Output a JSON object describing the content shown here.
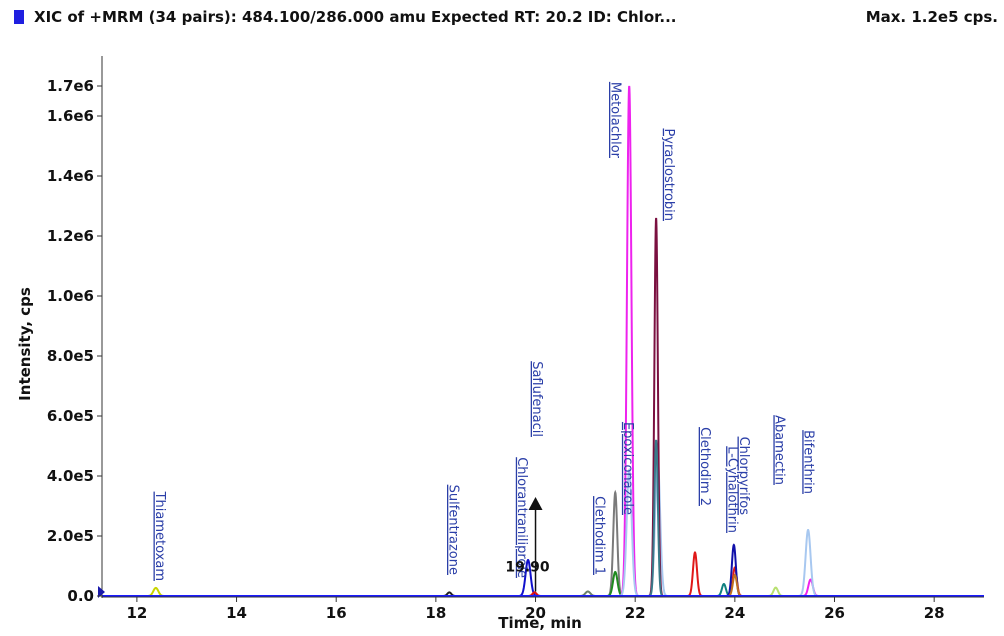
{
  "header": {
    "title": "XIC of +MRM (34 pairs): 484.100/286.000 amu Expected RT: 20.2 ID: Chlor...",
    "max_text": "Max. 1.2e5 cps.",
    "swatch_color": "#1f1fe0"
  },
  "chart_data": {
    "type": "line",
    "title": "XIC of +MRM (34 pairs): 484.100/286.000 amu Expected RT: 20.2 ID: Chlor...",
    "xlabel": "Time, min",
    "ylabel": "Intensity, cps",
    "xlim": [
      11.3,
      29.0
    ],
    "ylim": [
      0,
      1780000
    ],
    "x_ticks": [
      12,
      14,
      16,
      18,
      20,
      22,
      24,
      26,
      28
    ],
    "x_tick_labels": [
      "12",
      "14",
      "16",
      "18",
      "20",
      "22",
      "24",
      "26",
      "28"
    ],
    "y_ticks": [
      0,
      200000,
      400000,
      600000,
      800000,
      1000000,
      1200000,
      1400000,
      1600000,
      1700000
    ],
    "y_tick_labels": [
      "0.0",
      "2.0e5",
      "4.0e5",
      "6.0e5",
      "8.0e5",
      "1.0e6",
      "1.2e6",
      "1.4e6",
      "1.6e6",
      "1.7e6"
    ],
    "grid": false,
    "baseline_color": "#1a1aff",
    "series": [
      {
        "color": "#c8d400",
        "peaks": [
          [
            12.38,
            27000,
            0.05
          ]
        ]
      },
      {
        "color": "#202020",
        "peaks": [
          [
            18.27,
            12000,
            0.04
          ]
        ]
      },
      {
        "color": "#1010cc",
        "peaks": [
          [
            19.85,
            120000,
            0.05
          ]
        ]
      },
      {
        "color": "#e01010",
        "peaks": [
          [
            19.98,
            12000,
            0.04
          ]
        ]
      },
      {
        "color": "#6a7f6a",
        "peaks": [
          [
            21.05,
            15000,
            0.05
          ]
        ]
      },
      {
        "color": "#7a7a7a",
        "peaks": [
          [
            21.6,
            345000,
            0.04
          ]
        ]
      },
      {
        "color": "#1f8a1f",
        "peaks": [
          [
            21.6,
            80000,
            0.045
          ]
        ]
      },
      {
        "color": "#ee22ee",
        "peaks": [
          [
            21.88,
            1700000,
            0.045
          ],
          [
            25.52,
            55000,
            0.045
          ]
        ]
      },
      {
        "color": "#a8c8f0",
        "peaks": [
          [
            21.88,
            420000,
            0.05
          ],
          [
            22.45,
            460000,
            0.05
          ],
          [
            25.47,
            220000,
            0.05
          ]
        ]
      },
      {
        "color": "#7a1040",
        "peaks": [
          [
            22.42,
            1260000,
            0.035
          ]
        ]
      },
      {
        "color": "#3a7a8a",
        "peaks": [
          [
            22.42,
            520000,
            0.035
          ]
        ]
      },
      {
        "color": "#e01818",
        "peaks": [
          [
            23.2,
            145000,
            0.04
          ],
          [
            24.0,
            95000,
            0.04
          ]
        ]
      },
      {
        "color": "#108080",
        "peaks": [
          [
            23.78,
            40000,
            0.04
          ]
        ]
      },
      {
        "color": "#1010aa",
        "peaks": [
          [
            23.98,
            170000,
            0.04
          ]
        ]
      },
      {
        "color": "#c07020",
        "peaks": [
          [
            24.0,
            70000,
            0.04
          ]
        ]
      },
      {
        "color": "#b8e070",
        "peaks": [
          [
            24.82,
            28000,
            0.045
          ]
        ]
      }
    ],
    "peak_labels": [
      {
        "text": "Thiametoxam",
        "x": 12.38,
        "y": 50000
      },
      {
        "text": "Sulfentrazone",
        "x": 18.27,
        "y": 70000
      },
      {
        "text": "Chlorantraniliprole",
        "x": 19.65,
        "y": 60000
      },
      {
        "text": "Saflufenacil",
        "x": 19.95,
        "y": 530000
      },
      {
        "text": "Clethodim 1",
        "x": 21.2,
        "y": 70000
      },
      {
        "text": "Epoxiconazole",
        "x": 21.78,
        "y": 270000
      },
      {
        "text": "Metolachlor",
        "x": 21.52,
        "y": 1460000
      },
      {
        "text": "Pyraclostrobin",
        "x": 22.6,
        "y": 1250000
      },
      {
        "text": "Clethodim 2",
        "x": 23.32,
        "y": 300000
      },
      {
        "text": "L-Cyhalothrin",
        "x": 23.87,
        "y": 210000
      },
      {
        "text": "Chlorpyrifos",
        "x": 24.1,
        "y": 270000
      },
      {
        "text": "Abamectin",
        "x": 24.82,
        "y": 370000
      },
      {
        "text": "Bifenthrin",
        "x": 25.4,
        "y": 340000
      }
    ],
    "annotation": {
      "text": "19.90",
      "x": 20.0,
      "arrow_from": 15000,
      "arrow_to": 330000
    }
  }
}
